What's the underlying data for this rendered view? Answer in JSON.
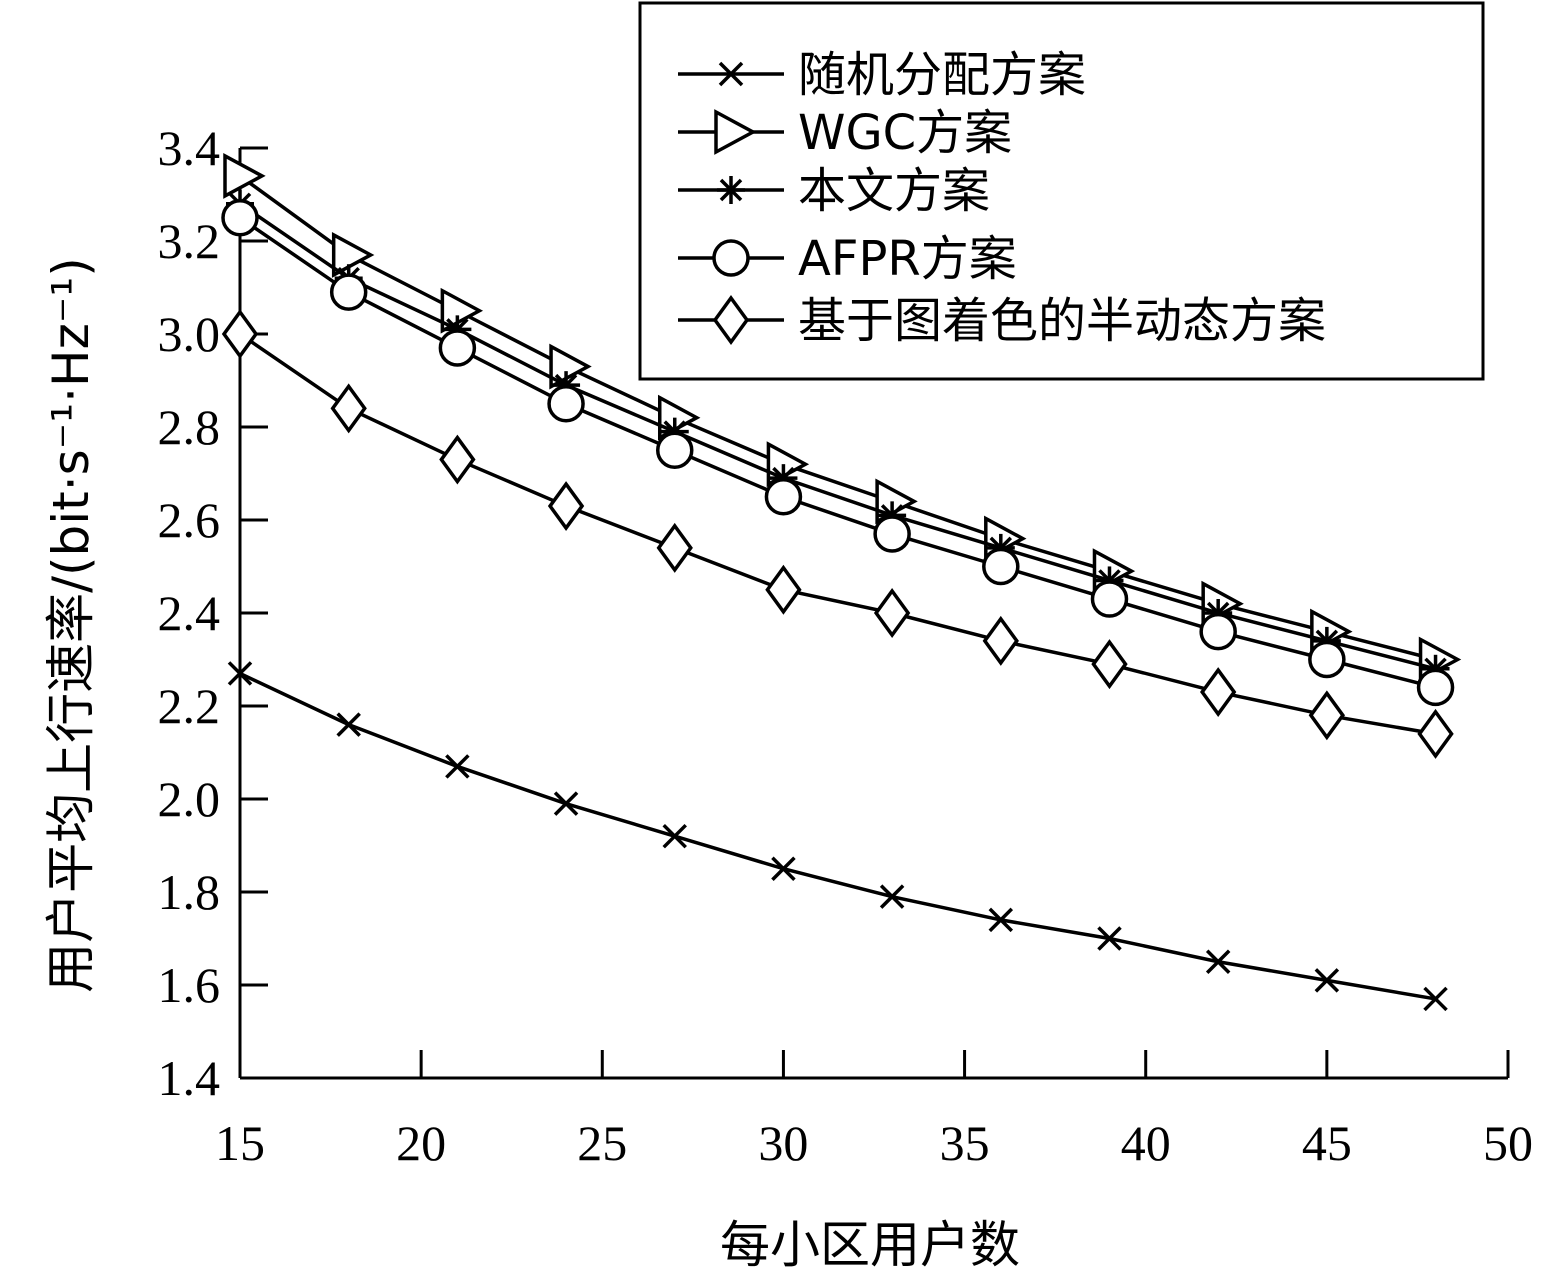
{
  "chart_data": {
    "type": "line",
    "xlabel": "每小区用户数",
    "ylabel": "用户平均上行速率/(bit·s⁻¹·Hz⁻¹)",
    "xlim": [
      15,
      50
    ],
    "ylim": [
      1.4,
      3.4
    ],
    "xticks": [
      "15",
      "20",
      "25",
      "30",
      "35",
      "40",
      "45",
      "50"
    ],
    "yticks": [
      "1.4",
      "1.6",
      "1.8",
      "2.0",
      "2.2",
      "2.4",
      "2.6",
      "2.8",
      "3.0",
      "3.2",
      "3.4"
    ],
    "grid": false,
    "legend_position": "top-right",
    "x": [
      15,
      18,
      21,
      24,
      27,
      30,
      33,
      36,
      39,
      42,
      45,
      48
    ],
    "series": [
      {
        "name": "随机分配方案",
        "marker": "x",
        "values": [
          2.27,
          2.16,
          2.07,
          1.99,
          1.92,
          1.85,
          1.79,
          1.74,
          1.7,
          1.65,
          1.61,
          1.57
        ]
      },
      {
        "name": "WGC方案",
        "marker": "triangle-right",
        "values": [
          3.34,
          3.17,
          3.05,
          2.93,
          2.82,
          2.72,
          2.64,
          2.56,
          2.49,
          2.42,
          2.36,
          2.3
        ]
      },
      {
        "name": "本文方案",
        "marker": "asterisk",
        "values": [
          3.28,
          3.12,
          3.01,
          2.89,
          2.79,
          2.69,
          2.61,
          2.54,
          2.47,
          2.4,
          2.34,
          2.28
        ]
      },
      {
        "name": "AFPR方案",
        "marker": "circle",
        "values": [
          3.25,
          3.09,
          2.97,
          2.85,
          2.75,
          2.65,
          2.57,
          2.5,
          2.43,
          2.36,
          2.3,
          2.24
        ]
      },
      {
        "name": "基于图着色的半动态方案",
        "marker": "diamond",
        "values": [
          3.0,
          2.84,
          2.73,
          2.63,
          2.54,
          2.45,
          2.4,
          2.34,
          2.29,
          2.23,
          2.18,
          2.14
        ]
      }
    ]
  }
}
